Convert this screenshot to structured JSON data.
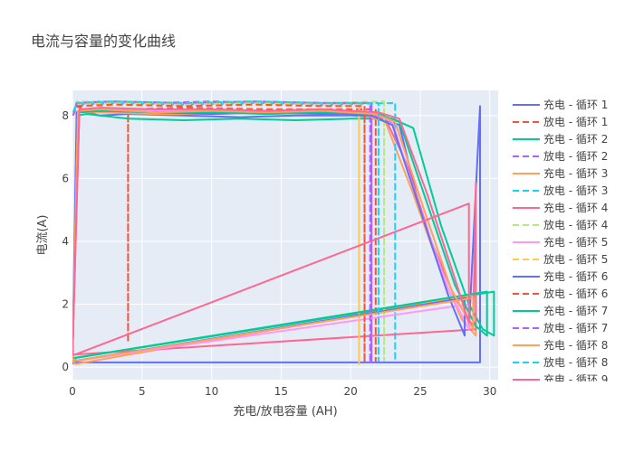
{
  "chart_data": {
    "type": "line",
    "title": "电流与容量的变化曲线",
    "xlabel": "充电/放电容量 (AH)",
    "ylabel": "电流(A)",
    "xlim": [
      0,
      30.6
    ],
    "ylim": [
      -0.4,
      8.8
    ],
    "xticks": [
      0,
      5,
      10,
      15,
      20,
      25,
      30
    ],
    "yticks": [
      0,
      2,
      4,
      6,
      8
    ],
    "grid": true,
    "legend_position": "right",
    "series": [
      {
        "name": "充电 - 循环 1",
        "dash": "solid",
        "color": "#636efa",
        "x": [
          0,
          0.3,
          0.6,
          1.0,
          2.0,
          4.0,
          8.0,
          12.0,
          16.0,
          20.0,
          22.0,
          23.5,
          25.0,
          27.0,
          28.5,
          29.3,
          29.3,
          0.1,
          0.0
        ],
        "y": [
          0.1,
          8.1,
          8.2,
          8.1,
          8.0,
          8.05,
          8.0,
          7.95,
          8.0,
          8.0,
          7.95,
          7.7,
          5.0,
          2.5,
          1.2,
          8.3,
          0.15,
          0.15,
          0.1
        ]
      },
      {
        "name": "放电 - 循环 1",
        "dash": "dash",
        "color": "#ef553b",
        "x": [
          0.05,
          0.2,
          1.0,
          4.0,
          4.0,
          4.0,
          8.0,
          14.0,
          20.0,
          21.8,
          21.8,
          21.8
        ],
        "y": [
          8.0,
          8.3,
          8.2,
          8.2,
          0.8,
          8.2,
          8.25,
          8.2,
          8.2,
          8.2,
          0.2,
          8.2
        ]
      },
      {
        "name": "充电 - 循环 2",
        "dash": "solid",
        "color": "#00cc96",
        "x": [
          0,
          0.4,
          1.0,
          4.0,
          8.0,
          12.0,
          16.0,
          20.0,
          23.0,
          24.5,
          26.5,
          28.5,
          29.5,
          30.3,
          30.3,
          0.3,
          0.0
        ],
        "y": [
          0.2,
          8.0,
          8.05,
          7.9,
          7.85,
          7.9,
          7.85,
          7.9,
          7.9,
          7.6,
          4.5,
          2.0,
          1.2,
          1.0,
          2.4,
          0.3,
          0.2
        ]
      },
      {
        "name": "放电 - 循环 2",
        "dash": "dash",
        "color": "#ab63fa",
        "x": [
          0.05,
          0.3,
          2.0,
          6.0,
          10.0,
          14.0,
          18.0,
          21.5,
          21.5,
          21.5
        ],
        "y": [
          8.0,
          8.4,
          8.45,
          8.4,
          8.45,
          8.4,
          8.4,
          8.4,
          0.15,
          8.4
        ]
      },
      {
        "name": "充电 - 循环 3",
        "dash": "solid",
        "color": "#ffa15a",
        "x": [
          0,
          0.4,
          2.0,
          6.0,
          10.0,
          14.0,
          18.0,
          21.0,
          22.5,
          24.5,
          26.5,
          28.0,
          29.0,
          29.0,
          0.2,
          0.0
        ],
        "y": [
          0.2,
          8.1,
          8.1,
          8.05,
          8.05,
          8.1,
          8.05,
          8.0,
          7.8,
          5.5,
          3.0,
          1.5,
          1.0,
          2.3,
          0.1,
          0.2
        ]
      },
      {
        "name": "放电 - 循环 3",
        "dash": "dash",
        "color": "#19d3f3",
        "x": [
          0.05,
          0.3,
          3.0,
          8.0,
          13.0,
          18.0,
          23.2,
          23.2,
          23.2
        ],
        "y": [
          8.1,
          8.35,
          8.4,
          8.35,
          8.4,
          8.35,
          8.4,
          0.2,
          8.4
        ]
      },
      {
        "name": "充电 - 循环 4",
        "dash": "solid",
        "color": "#ff6692",
        "x": [
          0,
          0.5,
          2.0,
          6.0,
          10.0,
          14.0,
          18.0,
          21.0,
          22.5,
          24.0,
          25.8,
          27.5,
          28.8,
          29.0,
          29.0,
          0.1,
          0.0
        ],
        "y": [
          0.4,
          8.2,
          8.2,
          8.2,
          8.1,
          8.15,
          8.1,
          8.05,
          7.9,
          6.5,
          4.0,
          2.2,
          1.3,
          5.85,
          1.2,
          0.4,
          0.4
        ]
      },
      {
        "name": "放电 - 循环 4",
        "dash": "dash",
        "color": "#b6e880",
        "x": [
          0.05,
          0.3,
          3.0,
          8.0,
          13.0,
          18.0,
          22.4,
          22.4,
          22.4
        ],
        "y": [
          8.0,
          8.45,
          8.45,
          8.4,
          8.45,
          8.4,
          8.45,
          0.2,
          8.45
        ]
      },
      {
        "name": "充电 - 循环 5",
        "dash": "solid",
        "color": "#ff97ff",
        "x": [
          0,
          0.4,
          2.0,
          6.0,
          10.0,
          14.0,
          18.0,
          21.5,
          23.0,
          25.0,
          27.0,
          28.5,
          28.5,
          0.2,
          0.0
        ],
        "y": [
          0.3,
          8.15,
          8.2,
          8.15,
          8.2,
          8.15,
          8.2,
          8.1,
          7.8,
          5.0,
          2.5,
          1.2,
          2.0,
          0.2,
          0.3
        ]
      },
      {
        "name": "放电 - 循环 5",
        "dash": "dash",
        "color": "#fecb52",
        "x": [
          0.05,
          0.3,
          3.0,
          8.0,
          13.0,
          18.0,
          20.6,
          20.6,
          20.6
        ],
        "y": [
          8.0,
          8.35,
          8.4,
          8.35,
          8.4,
          8.35,
          8.35,
          0.1,
          8.35
        ]
      },
      {
        "name": "充电 - 循环 6",
        "dash": "solid",
        "color": "#636efa",
        "x": [
          0,
          0.4,
          2.0,
          6.0,
          10.0,
          14.0,
          18.0,
          21.5,
          23.0,
          25.0,
          27.0,
          28.2,
          28.2,
          0.2,
          0.0
        ],
        "y": [
          0.2,
          8.1,
          8.15,
          8.1,
          8.05,
          8.1,
          8.05,
          8.0,
          7.7,
          5.0,
          2.3,
          1.0,
          2.2,
          0.2,
          0.2
        ]
      },
      {
        "name": "放电 - 循环 6",
        "dash": "dash",
        "color": "#ef553b",
        "x": [
          0.05,
          0.3,
          3.0,
          8.0,
          13.0,
          18.0,
          21.0,
          21.0,
          21.0
        ],
        "y": [
          8.0,
          8.3,
          8.35,
          8.3,
          8.35,
          8.3,
          8.3,
          0.15,
          8.3
        ]
      },
      {
        "name": "充电 - 循环 7",
        "dash": "solid",
        "color": "#00cc96",
        "x": [
          0,
          0.4,
          2.0,
          6.0,
          10.0,
          14.0,
          18.0,
          22.0,
          23.5,
          25.5,
          27.5,
          29.0,
          29.8,
          29.8,
          0.2,
          0.0
        ],
        "y": [
          0.3,
          8.1,
          8.15,
          8.1,
          8.1,
          8.05,
          8.1,
          8.05,
          7.8,
          5.2,
          2.6,
          1.3,
          1.0,
          2.4,
          0.3,
          0.3
        ]
      },
      {
        "name": "放电 - 循环 7",
        "dash": "dash",
        "color": "#ab63fa",
        "x": [
          0.05,
          0.3,
          3.0,
          8.0,
          13.0,
          18.0,
          21.4,
          21.4,
          21.4
        ],
        "y": [
          8.0,
          8.4,
          8.45,
          8.4,
          8.45,
          8.4,
          8.4,
          0.15,
          8.4
        ]
      },
      {
        "name": "充电 - 循环 8",
        "dash": "solid",
        "color": "#ffa15a",
        "x": [
          0,
          0.4,
          2.0,
          6.0,
          10.0,
          14.0,
          18.0,
          21.8,
          23.2,
          25.2,
          27.2,
          28.8,
          28.8,
          0.2,
          0.0
        ],
        "y": [
          0.2,
          8.15,
          8.2,
          8.1,
          8.15,
          8.1,
          8.15,
          8.05,
          7.8,
          5.1,
          2.5,
          1.2,
          2.2,
          0.2,
          0.2
        ]
      },
      {
        "name": "放电 - 循环 8",
        "dash": "dash",
        "color": "#19d3f3",
        "x": [
          0.05,
          0.3,
          3.0,
          8.0,
          13.0,
          18.0,
          22.0,
          22.0,
          22.0
        ],
        "y": [
          8.1,
          8.4,
          8.45,
          8.4,
          8.45,
          8.4,
          8.4,
          0.2,
          8.4
        ]
      },
      {
        "name": "充电 - 循环 9",
        "dash": "solid",
        "color": "#ff6692",
        "x": [
          0,
          0.5,
          2.0,
          6.0,
          10.0,
          14.0,
          18.0,
          22.0,
          23.5,
          25.5,
          27.5,
          28.5,
          28.5,
          0.2,
          0.0
        ],
        "y": [
          0.4,
          8.2,
          8.25,
          8.2,
          8.2,
          8.15,
          8.2,
          8.1,
          7.9,
          5.5,
          2.8,
          1.4,
          5.2,
          0.4,
          0.4
        ]
      }
    ]
  }
}
